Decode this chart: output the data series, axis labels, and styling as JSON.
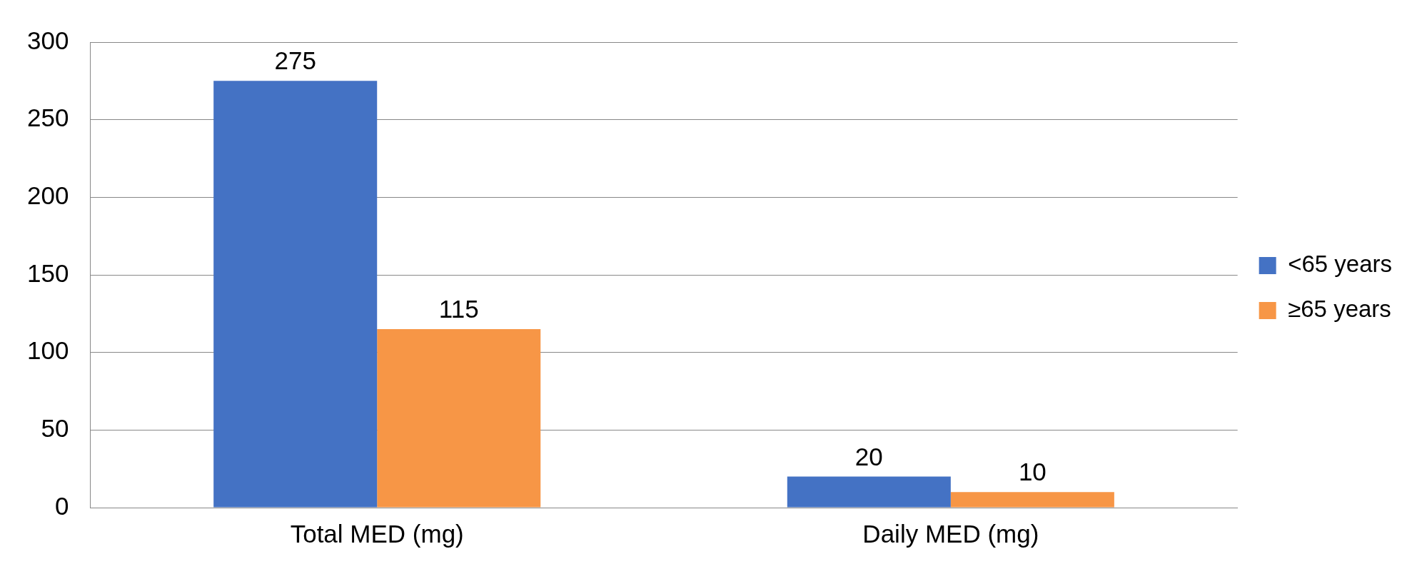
{
  "chart_data": {
    "type": "bar",
    "categories": [
      "Total MED (mg)",
      "Daily MED (mg)"
    ],
    "series": [
      {
        "name": "<65 years",
        "color": "#4472c4",
        "values": [
          275,
          20
        ]
      },
      {
        "name": "≥65 years",
        "color": "#f79646",
        "values": [
          115,
          10
        ]
      }
    ],
    "ylim": [
      0,
      300
    ],
    "yticks": [
      0,
      50,
      100,
      150,
      200,
      250,
      300
    ],
    "grid": "y",
    "legend": "right",
    "data_labels": true
  }
}
